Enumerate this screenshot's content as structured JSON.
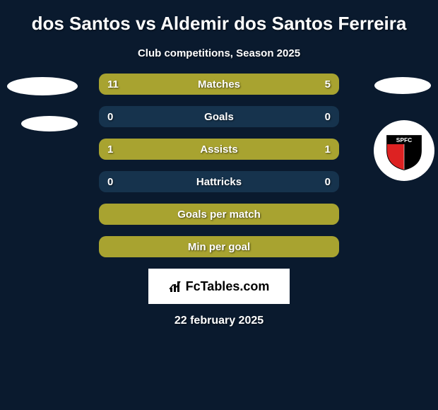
{
  "title": "dos Santos vs Aldemir dos Santos Ferreira",
  "subtitle": "Club competitions, Season 2025",
  "stats": [
    {
      "label": "Matches",
      "left_value": "11",
      "right_value": "5",
      "left_width": 68,
      "right_width": 32
    },
    {
      "label": "Goals",
      "left_value": "0",
      "right_value": "0",
      "left_width": 0,
      "right_width": 0
    },
    {
      "label": "Assists",
      "left_value": "1",
      "right_value": "1",
      "left_width": 50,
      "right_width": 50
    },
    {
      "label": "Hattricks",
      "left_value": "0",
      "right_value": "0",
      "left_width": 0,
      "right_width": 0
    },
    {
      "label": "Goals per match",
      "left_value": "",
      "right_value": "",
      "left_width": 50,
      "right_width": 50
    },
    {
      "label": "Min per goal",
      "left_value": "",
      "right_value": "",
      "left_width": 50,
      "right_width": 50
    }
  ],
  "colors": {
    "background": "#0a1a2e",
    "bar_fill": "#a8a330",
    "bar_empty": "#16334d",
    "text": "#ffffff",
    "footer_bg": "#ffffff",
    "footer_text": "#000000"
  },
  "footer_brand": "FcTables.com",
  "date": "22 february 2025",
  "club_logo_text": "SPFC"
}
